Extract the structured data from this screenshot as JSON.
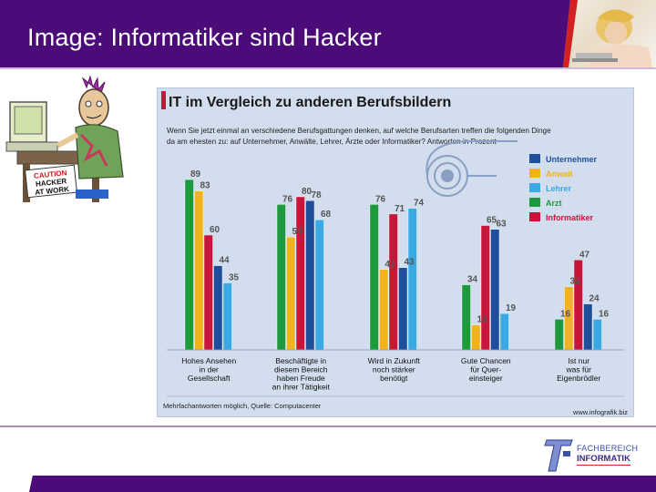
{
  "header": {
    "title": "Image: Informatiker sind Hacker"
  },
  "hacker_sign": {
    "line1": "CAUTION",
    "line2": "HACKER",
    "line3": "AT WORK"
  },
  "logo": {
    "line1": "FACHBEREICH",
    "line2": "INFORMATIK"
  },
  "colors": {
    "header_bg": "#4b0c7a",
    "unternehmer": "#1e4f9c",
    "anwalt": "#f2b21b",
    "lehrer": "#3aa9e4",
    "arzt": "#1d9a3e",
    "informatiker": "#c8163b"
  },
  "chart_data": {
    "type": "bar",
    "title": "IT im Vergleich zu anderen Berufsbildern",
    "subtitle_lines": [
      "Wenn Sie jetzt einmal an verschiedene Berufsgattungen denken, auf welche Berufsarten treffen die folgenden Dinge",
      "da am ehesten zu: auf Unternehmer, Anwälte, Lehrer, Ärzte oder Informatiker? Antworten in Prozent"
    ],
    "categories": [
      {
        "lines": [
          "Hohes Ansehen",
          "in der",
          "Gesellschaft"
        ]
      },
      {
        "lines": [
          "Beschäftigte in",
          "diesem Bereich",
          "haben Freude",
          "an ihrer Tätigkeit"
        ]
      },
      {
        "lines": [
          "Wird in Zukunft",
          "noch stärker",
          "benötigt"
        ]
      },
      {
        "lines": [
          "Gute Chancen",
          "für Quer-",
          "einsteiger"
        ]
      },
      {
        "lines": [
          "Ist nur",
          "was für",
          "Eigenbrödler"
        ]
      }
    ],
    "series": [
      {
        "name": "Unternehmer",
        "color": "#1e4f9c",
        "values": [
          44,
          78,
          43,
          63,
          24
        ]
      },
      {
        "name": "Anwalt",
        "color": "#f2b21b",
        "values": [
          83,
          59,
          42,
          13,
          33
        ]
      },
      {
        "name": "Lehrer",
        "color": "#3aa9e4",
        "values": [
          35,
          68,
          74,
          19,
          16
        ]
      },
      {
        "name": "Arzt",
        "color": "#1d9a3e",
        "values": [
          89,
          76,
          76,
          34,
          16
        ]
      },
      {
        "name": "Informatiker",
        "color": "#c8163b",
        "values": [
          60,
          80,
          71,
          65,
          47
        ]
      }
    ],
    "bar_order": [
      "Arzt",
      "Anwalt",
      "Informatiker",
      "Unternehmer",
      "Lehrer"
    ],
    "ylim": [
      0,
      100
    ],
    "footnote": "Mehrfachantworten möglich, Quelle: Computacenter",
    "credit": "www.infografik.biz",
    "legend_position": "top-right"
  }
}
